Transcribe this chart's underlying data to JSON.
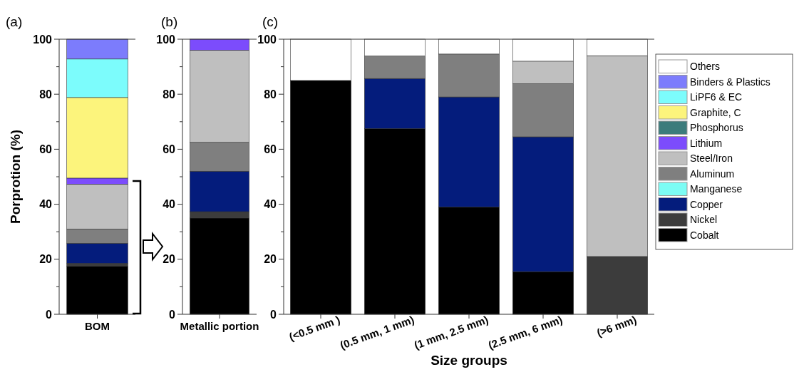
{
  "chart_data": [
    {
      "type": "bar",
      "title": "(a)",
      "ylabel": "Porprotion (%)",
      "categories": [
        "BOM"
      ],
      "stacked": true,
      "ylim": [
        0,
        100
      ],
      "yticks": [
        0,
        {
          "value": 10,
          "label": null
        },
        20,
        {
          "value": 30,
          "label": null
        },
        40,
        {
          "value": 50,
          "label": null
        },
        60,
        {
          "value": 70,
          "label": null
        },
        80,
        {
          "value": 90,
          "label": null
        },
        100
      ],
      "series": [
        {
          "color": "#000000",
          "values": [
            17.5
          ]
        },
        {
          "color": "#3c3c3c",
          "values": [
            1
          ]
        },
        {
          "color": "#041c7c",
          "values": [
            7.3
          ]
        },
        {
          "color": "#7f7f7f",
          "values": [
            5.2
          ]
        },
        {
          "color": "#bfbfbf",
          "values": [
            16.3
          ]
        },
        {
          "color": "#7c4cfc",
          "values": [
            2.2
          ]
        },
        {
          "color": "#fcf47c",
          "values": [
            29.3
          ]
        },
        {
          "color": "#7cfcfc",
          "values": [
            14
          ]
        },
        {
          "color": "#7c7cfc",
          "values": [
            7.2
          ]
        }
      ]
    },
    {
      "type": "bar",
      "title": "(b)",
      "categories": [
        "Metallic portion"
      ],
      "stacked": true,
      "ylim": [
        0,
        100
      ],
      "yticks": [
        0,
        {
          "value": 10,
          "label": null
        },
        20,
        {
          "value": 30,
          "label": null
        },
        40,
        {
          "value": 50,
          "label": null
        },
        60,
        {
          "value": 70,
          "label": null
        },
        80,
        {
          "value": 90,
          "label": null
        },
        100
      ],
      "series": [
        {
          "color": "#000000",
          "values": [
            35
          ]
        },
        {
          "color": "#3c3c3c",
          "values": [
            2.3
          ]
        },
        {
          "color": "#041c7c",
          "values": [
            14.7
          ]
        },
        {
          "color": "#7f7f7f",
          "values": [
            10.5
          ]
        },
        {
          "color": "#bfbfbf",
          "values": [
            33.5
          ]
        },
        {
          "color": "#7c4cfc",
          "values": [
            4
          ]
        }
      ]
    },
    {
      "type": "bar",
      "title": "(c)",
      "xlabel": "Size groups",
      "categories": [
        "(<0.5 mm )",
        "(0.5 mm, 1 mm)",
        "(1 mm, 2.5 mm)",
        "(2.5 mm, 6 mm)",
        "(>6 mm)"
      ],
      "stacked": true,
      "legend": "right",
      "ylim": [
        0,
        100
      ],
      "yticks": [
        0,
        {
          "value": 10,
          "label": null
        },
        20,
        {
          "value": 30,
          "label": null
        },
        40,
        {
          "value": 50,
          "label": null
        },
        60,
        {
          "value": 70,
          "label": null
        },
        80,
        {
          "value": 90,
          "label": null
        },
        100
      ],
      "series": [
        {
          "name": "Cobalt",
          "color": "#000000",
          "values": [
            85,
            67.5,
            39,
            15.5,
            null
          ]
        },
        {
          "name": "Nickel",
          "color": "#3c3c3c",
          "values": [
            null,
            null,
            null,
            null,
            21
          ]
        },
        {
          "name": "Copper",
          "color": "#041c7c",
          "values": [
            null,
            18.2,
            40,
            49,
            null
          ]
        },
        {
          "name": "Manganese",
          "color": "#7cfcf4",
          "values": [
            null,
            null,
            null,
            null,
            null
          ]
        },
        {
          "name": "Aluminum",
          "color": "#7f7f7f",
          "values": [
            null,
            8.2,
            15.6,
            19.3,
            null
          ]
        },
        {
          "name": "Steel/Iron",
          "color": "#bfbfbf",
          "values": [
            null,
            null,
            null,
            8.2,
            73
          ]
        },
        {
          "name": "Lithium",
          "color": "#7c4cfc",
          "values": [
            null,
            null,
            null,
            null,
            null
          ]
        },
        {
          "name": "Phosphorus",
          "color": "#3c7c7c",
          "values": [
            null,
            null,
            null,
            null,
            null
          ]
        },
        {
          "name": "Graphite, C",
          "color": "#fcf47c",
          "values": [
            null,
            null,
            null,
            null,
            null
          ]
        },
        {
          "name": "LiPF6 & EC",
          "color": "#7cfcfc",
          "values": [
            null,
            null,
            null,
            null,
            null
          ]
        },
        {
          "name": "Binders & Plastics",
          "color": "#7c7cfc",
          "values": [
            null,
            null,
            null,
            null,
            null
          ]
        },
        {
          "name": "Others",
          "color": "#ffffff",
          "values": [
            15,
            6.1,
            5.4,
            8,
            6
          ]
        }
      ]
    }
  ]
}
